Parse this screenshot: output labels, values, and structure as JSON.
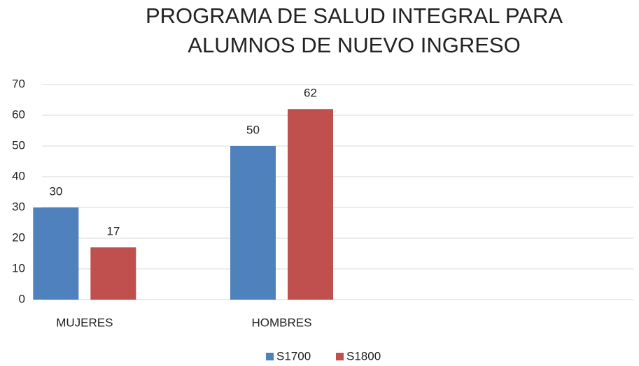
{
  "chart_data": {
    "type": "bar",
    "title": "PROGRAMA DE SALUD INTEGRAL PARA ALUMNOS DE NUEVO INGRESO",
    "categories": [
      "MUJERES",
      "HOMBRES",
      null
    ],
    "series": [
      {
        "name": "S1700",
        "color": "#4f81bd",
        "values": [
          30,
          50,
          null
        ]
      },
      {
        "name": "S1800",
        "color": "#c0504d",
        "values": [
          17,
          62,
          null
        ]
      }
    ],
    "ylim": [
      0,
      70
    ],
    "yticks": [
      0,
      10,
      20,
      30,
      40,
      50,
      60,
      70
    ],
    "grid": true,
    "legend": "bottom"
  }
}
